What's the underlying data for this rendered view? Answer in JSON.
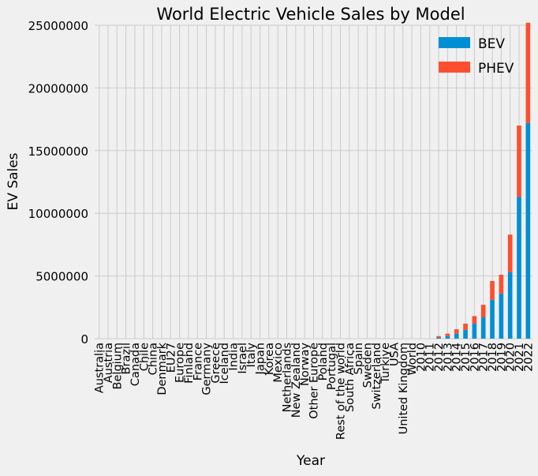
{
  "chart_data": {
    "type": "bar",
    "stacked": true,
    "title": "World Electric Vehicle Sales by Model",
    "xlabel": "Year",
    "ylabel": "EV Sales",
    "ylim": [
      0,
      25000000
    ],
    "yticks": [
      0,
      5000000,
      10000000,
      15000000,
      20000000,
      25000000
    ],
    "ytick_labels": [
      "0",
      "5000000",
      "10000000",
      "15000000",
      "20000000",
      "25000000"
    ],
    "grid": true,
    "legend_position": "top-right",
    "categories": [
      "Australia",
      "Austria",
      "Belgium",
      "Brazil",
      "Canada",
      "Chile",
      "China",
      "Denmark",
      "EU27",
      "Europe",
      "Finland",
      "France",
      "Germany",
      "Greece",
      "Iceland",
      "India",
      "Israel",
      "Italy",
      "Japan",
      "Korea",
      "Mexico",
      "Netherlands",
      "New Zealand",
      "Norway",
      "Other Europe",
      "Poland",
      "Portugal",
      "Rest of the world",
      "South Africa",
      "Spain",
      "Sweden",
      "Switzerland",
      "Turkiye",
      "USA",
      "United Kingdom",
      "World",
      "2010",
      "2011",
      "2012",
      "2013",
      "2014",
      "2015",
      "2016",
      "2017",
      "2018",
      "2019",
      "2020",
      "2021",
      "2022"
    ],
    "series": [
      {
        "name": "BEV",
        "color": "#008fd5",
        "values": [
          0,
          0,
          0,
          0,
          0,
          0,
          0,
          0,
          0,
          0,
          0,
          0,
          0,
          0,
          0,
          0,
          0,
          0,
          0,
          0,
          0,
          0,
          0,
          0,
          0,
          0,
          0,
          0,
          0,
          0,
          0,
          0,
          0,
          0,
          0,
          0,
          0,
          0,
          100000,
          200000,
          400000,
          700000,
          1200000,
          1700000,
          3100000,
          3600000,
          5300000,
          11300000,
          17200000
        ]
      },
      {
        "name": "PHEV",
        "color": "#fc4f30",
        "values": [
          0,
          0,
          0,
          0,
          0,
          0,
          0,
          0,
          0,
          0,
          0,
          0,
          0,
          0,
          0,
          0,
          0,
          0,
          0,
          0,
          0,
          0,
          0,
          0,
          0,
          0,
          0,
          0,
          0,
          0,
          0,
          0,
          0,
          0,
          0,
          0,
          0,
          0,
          100000,
          200000,
          350000,
          500000,
          600000,
          1000000,
          1500000,
          1500000,
          3000000,
          5700000,
          8000000
        ]
      }
    ]
  }
}
